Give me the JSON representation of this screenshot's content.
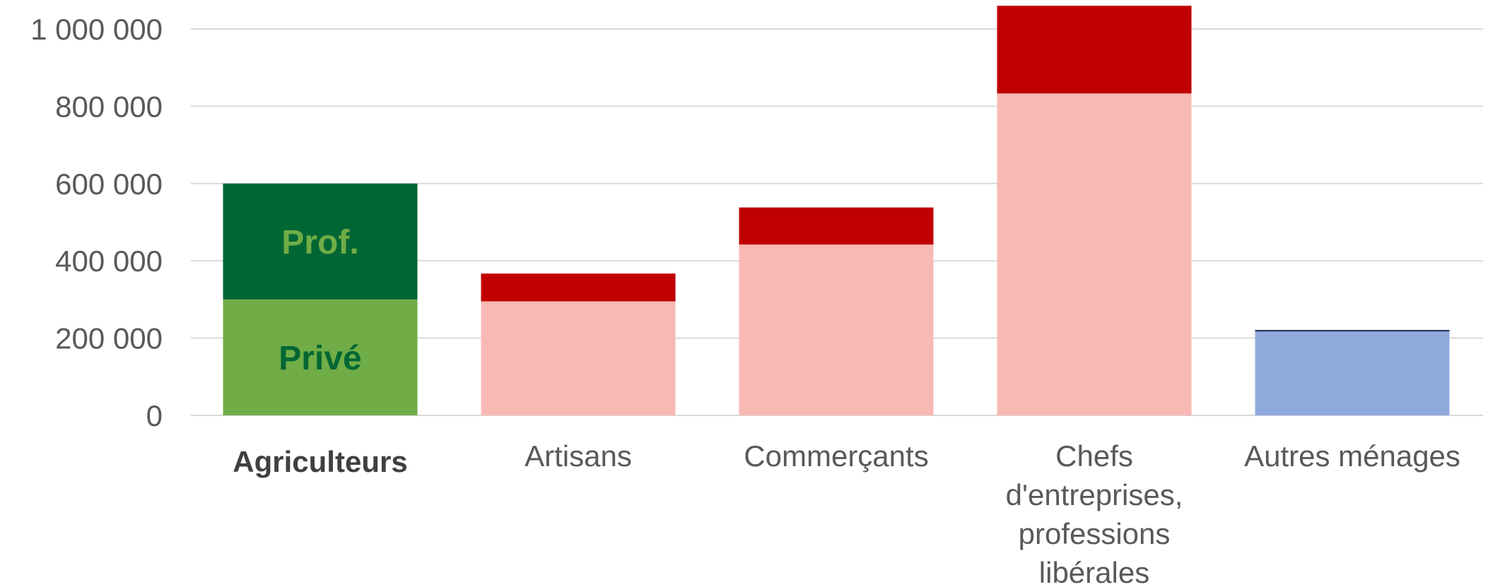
{
  "chart_data": {
    "type": "bar",
    "stacked": true,
    "categories": [
      {
        "label": "Agriculteurs",
        "lines": [
          "Agriculteurs"
        ],
        "bold": true
      },
      {
        "label": "Artisans",
        "lines": [
          "Artisans"
        ],
        "bold": false
      },
      {
        "label": "Commerçants",
        "lines": [
          "Commerçants"
        ],
        "bold": false
      },
      {
        "label": "Chefs d'entreprises, professions libérales",
        "lines": [
          "Chefs",
          "d'entreprises,",
          "professions",
          "libérales"
        ],
        "bold": false
      },
      {
        "label": "Autres ménages",
        "lines": [
          "Autres ménages"
        ],
        "bold": false
      }
    ],
    "stacks": [
      [
        {
          "value": 300000,
          "color": "#70ad47",
          "label": "Privé",
          "label_color": "#006633"
        },
        {
          "value": 300000,
          "color": "#006633",
          "label": "Prof.",
          "label_color": "#70ad47"
        }
      ],
      [
        {
          "value": 295000,
          "color": "#f8b9b5",
          "label": ""
        },
        {
          "value": 72000,
          "color": "#c00000",
          "label": ""
        }
      ],
      [
        {
          "value": 442000,
          "color": "#f8b9b5",
          "label": ""
        },
        {
          "value": 96000,
          "color": "#c00000",
          "label": ""
        }
      ],
      [
        {
          "value": 833000,
          "color": "#f8b9b5",
          "label": ""
        },
        {
          "value": 227000,
          "color": "#c00000",
          "label": ""
        }
      ],
      [
        {
          "value": 217000,
          "color": "#8faadc",
          "label": ""
        },
        {
          "value": 4000,
          "color": "#1f2a5c",
          "label": ""
        }
      ]
    ],
    "ylim": [
      0,
      1000000
    ],
    "yticks": [
      0,
      200000,
      400000,
      600000,
      800000,
      1000000
    ],
    "ytick_labels": [
      "0",
      "200 000",
      "400 000",
      "600 000",
      "800 000",
      "1 000 000"
    ],
    "grid": true,
    "legend": "none",
    "title": "",
    "xlabel": "",
    "ylabel": ""
  }
}
